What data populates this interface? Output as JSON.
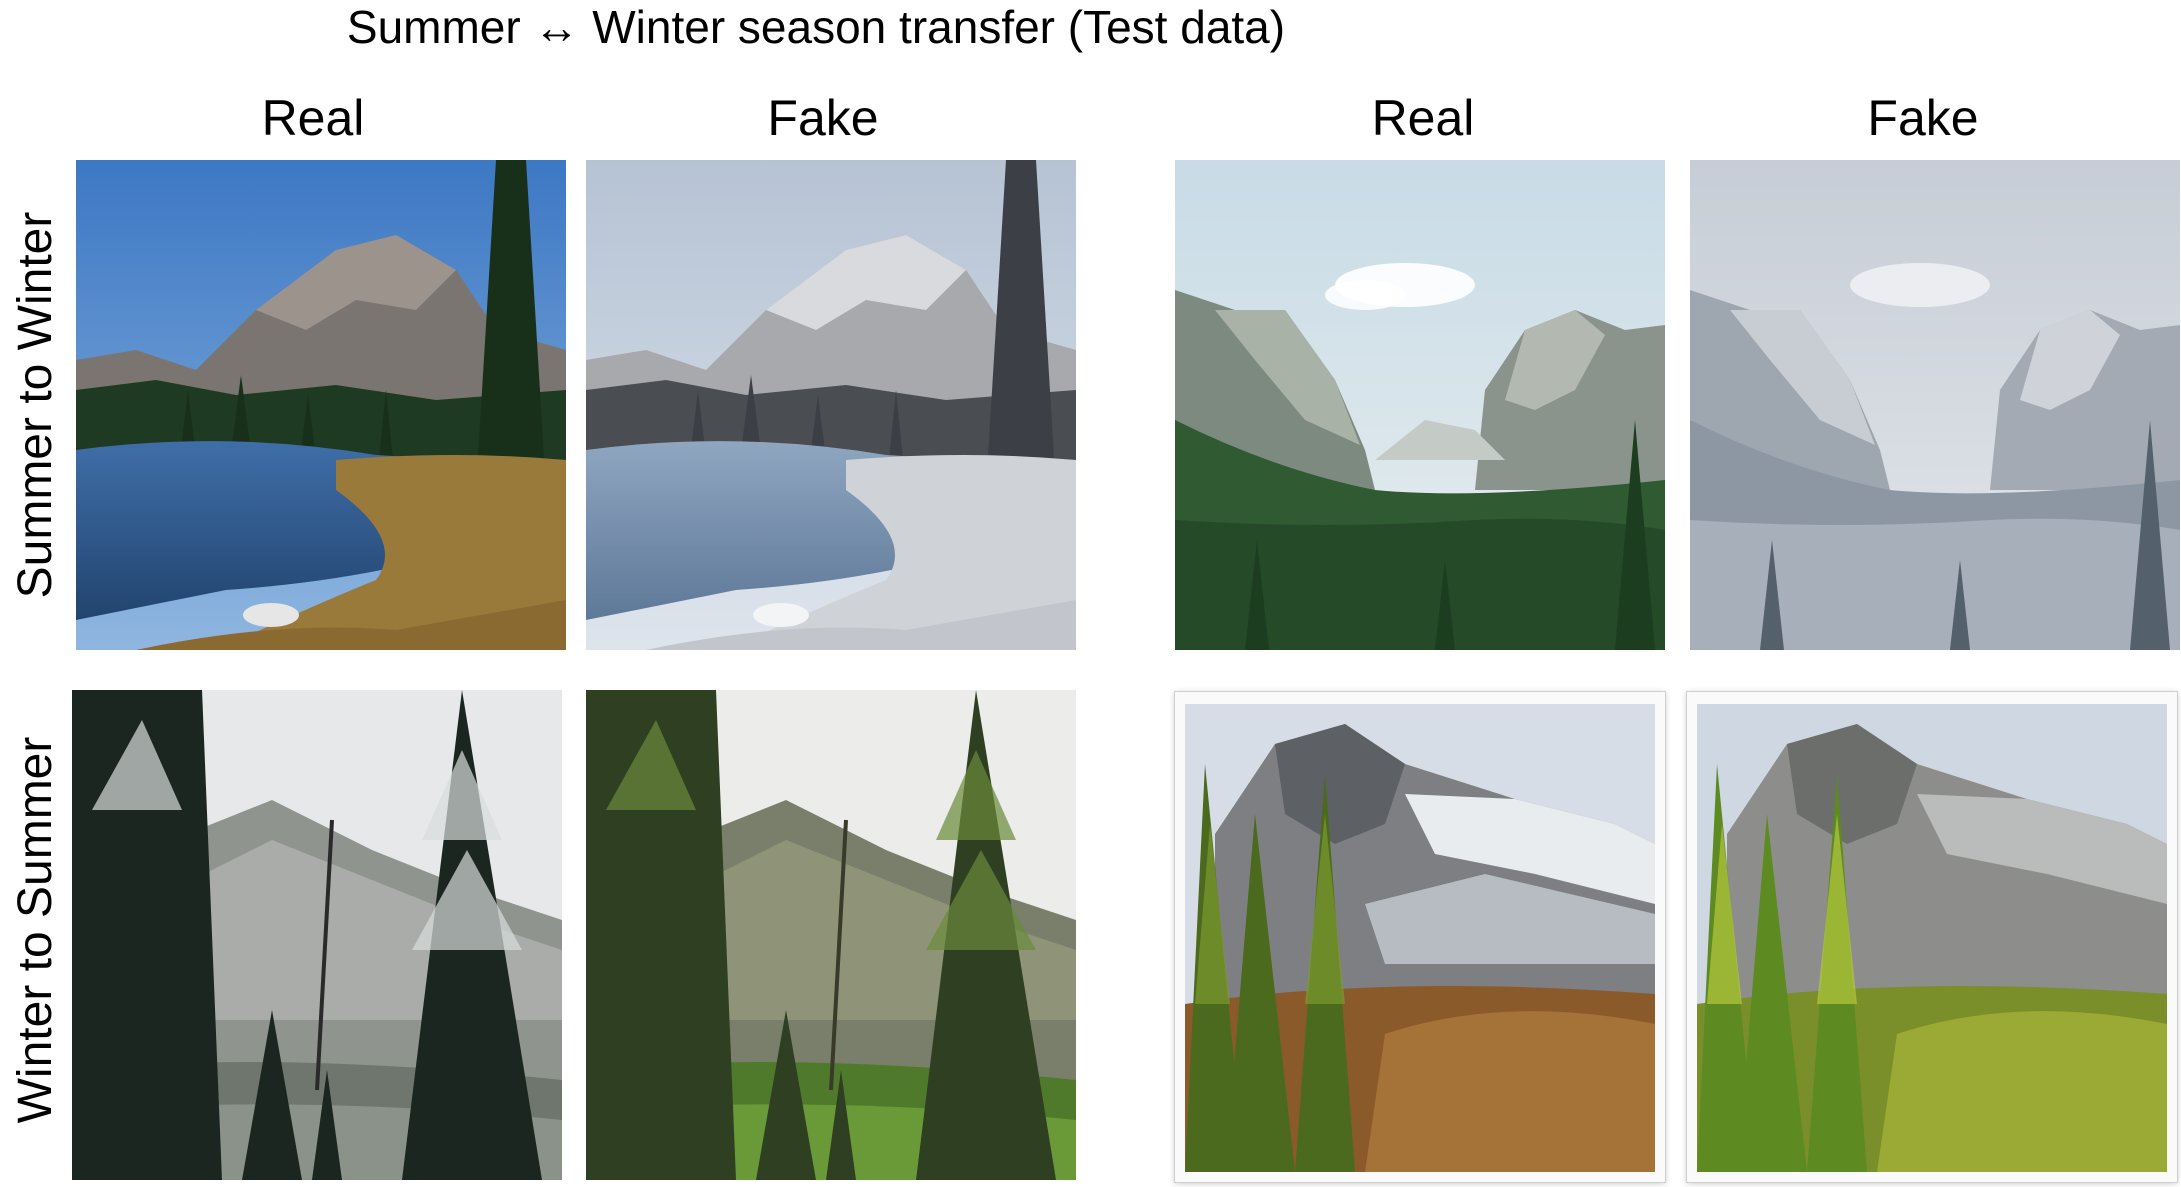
{
  "figure": {
    "title": "Summer ↔ Winter season transfer (Test data)",
    "columns": [
      "Real",
      "Fake",
      "Real",
      "Fake"
    ],
    "rows": [
      "Summer to Winter",
      "Winter to Summer"
    ]
  },
  "tiles": [
    {
      "name": "summer-lake-real",
      "scene": "mountain lake with pine trees, summer"
    },
    {
      "name": "summer-lake-fake",
      "scene": "mountain lake with pine trees, winterized"
    },
    {
      "name": "summer-valley-real",
      "scene": "green forested valley with granite cliffs, summer"
    },
    {
      "name": "summer-valley-fake",
      "scene": "forested valley with granite cliffs, snowy"
    },
    {
      "name": "winter-forest-real",
      "scene": "snowy pine forest, winter"
    },
    {
      "name": "winter-forest-fake",
      "scene": "pine forest turned green, summer"
    },
    {
      "name": "winter-halfdome-real",
      "scene": "snowy granite dome with autumn trees"
    },
    {
      "name": "winter-halfdome-fake",
      "scene": "granite dome with green trees, summer"
    }
  ],
  "colors": {
    "summer_sky": "#4f86c6",
    "winter_sky": "#c9d4e0",
    "pine": "#1f3a22",
    "meadow": "#9a7a3a",
    "snow": "#dfe4ea",
    "foliage_summer": "#7fa030",
    "foliage_autumn": "#9a6a30"
  }
}
